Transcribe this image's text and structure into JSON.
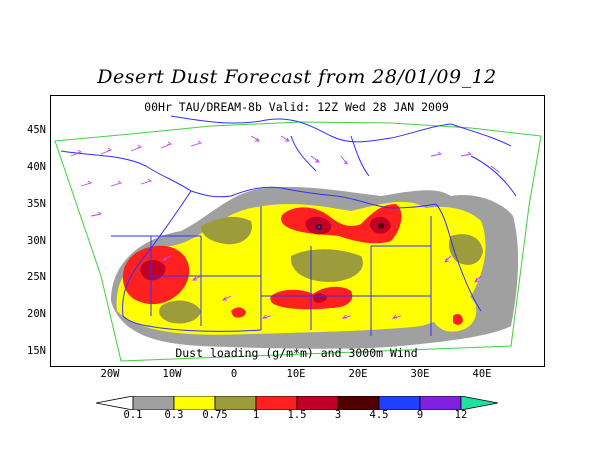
{
  "title": "Desert Dust Forecast from 28/01/09_12",
  "subtitle": "00Hr TAU/DREAM-8b Valid: 12Z Wed 28 JAN 2009",
  "caption": "Dust loading (g/m*m) and 3000m Wind",
  "lat_ticks": [
    "45N",
    "40N",
    "35N",
    "30N",
    "25N",
    "20N",
    "15N"
  ],
  "lon_ticks": [
    "20W",
    "10W",
    "0",
    "10E",
    "20E",
    "30E",
    "40E"
  ],
  "legend": {
    "levels": [
      "0.1",
      "0.3",
      "0.75",
      "1",
      "1.5",
      "3",
      "4.5",
      "9",
      "12"
    ],
    "colors": [
      "#ffffff",
      "#a0a0a0",
      "#ffff00",
      "#9c9c3c",
      "#ff2020",
      "#c00028",
      "#500000",
      "#2040ff",
      "#8020e0",
      "#20e0a0"
    ]
  },
  "colors": {
    "coast": "#3030ff",
    "wind": "#c040ff",
    "domain": "#40d040"
  }
}
